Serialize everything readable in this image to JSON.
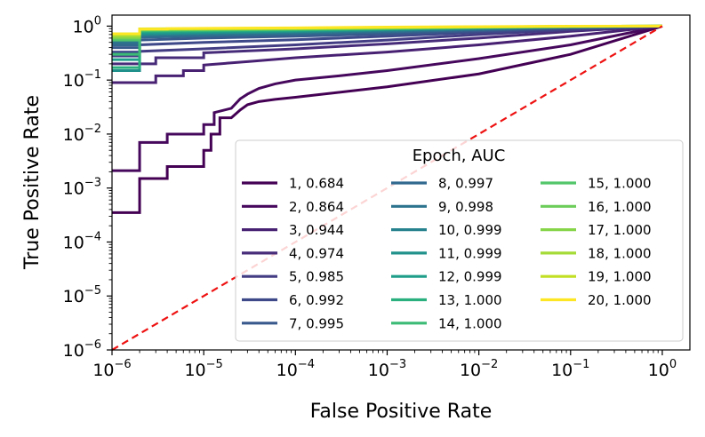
{
  "chart_data": {
    "type": "line",
    "xlabel": "False Positive Rate",
    "ylabel": "True Positive Rate",
    "xscale": "log",
    "yscale": "log",
    "xlim": [
      1e-06,
      2
    ],
    "ylim": [
      1e-06,
      1.6
    ],
    "xticks": [
      {
        "base": "10",
        "exp": "−6"
      },
      {
        "base": "10",
        "exp": "−5"
      },
      {
        "base": "10",
        "exp": "−4"
      },
      {
        "base": "10",
        "exp": "−3"
      },
      {
        "base": "10",
        "exp": "−2"
      },
      {
        "base": "10",
        "exp": "−1"
      },
      {
        "base": "10",
        "exp": "0"
      }
    ],
    "yticks": [
      {
        "base": "10",
        "exp": "−6"
      },
      {
        "base": "10",
        "exp": "−5"
      },
      {
        "base": "10",
        "exp": "−4"
      },
      {
        "base": "10",
        "exp": "−3"
      },
      {
        "base": "10",
        "exp": "−2"
      },
      {
        "base": "10",
        "exp": "−1"
      },
      {
        "base": "10",
        "exp": "0"
      }
    ],
    "legend": {
      "title": "Epoch, AUC",
      "location": "lower right",
      "columns": 3
    },
    "diagonal": {
      "color": "#ee1111",
      "style": "dashed",
      "points": [
        [
          1e-06,
          1e-06
        ],
        [
          1,
          1
        ]
      ]
    },
    "series": [
      {
        "name": "1, 0.684",
        "color": "#440154",
        "points": [
          [
            1e-06,
            0.00035
          ],
          [
            2e-06,
            0.00035
          ],
          [
            2e-06,
            0.0015
          ],
          [
            4e-06,
            0.0015
          ],
          [
            4e-06,
            0.0025
          ],
          [
            1e-05,
            0.0025
          ],
          [
            1e-05,
            0.005
          ],
          [
            1.2e-05,
            0.005
          ],
          [
            1.2e-05,
            0.01
          ],
          [
            1.5e-05,
            0.01
          ],
          [
            1.5e-05,
            0.02
          ],
          [
            2e-05,
            0.02
          ],
          [
            2.5e-05,
            0.028
          ],
          [
            3e-05,
            0.035
          ],
          [
            4e-05,
            0.04
          ],
          [
            6e-05,
            0.044
          ],
          [
            0.0001,
            0.048
          ],
          [
            0.001,
            0.075
          ],
          [
            0.01,
            0.13
          ],
          [
            0.1,
            0.3
          ],
          [
            1,
            1
          ]
        ]
      },
      {
        "name": "2, 0.864",
        "color": "#46085c",
        "points": [
          [
            1e-06,
            0.0021
          ],
          [
            2e-06,
            0.0021
          ],
          [
            2e-06,
            0.007
          ],
          [
            4e-06,
            0.007
          ],
          [
            4e-06,
            0.01
          ],
          [
            1e-05,
            0.01
          ],
          [
            1e-05,
            0.015
          ],
          [
            1.3e-05,
            0.015
          ],
          [
            1.3e-05,
            0.025
          ],
          [
            2e-05,
            0.03
          ],
          [
            2.5e-05,
            0.045
          ],
          [
            3e-05,
            0.055
          ],
          [
            4e-05,
            0.07
          ],
          [
            6e-05,
            0.085
          ],
          [
            0.0001,
            0.1
          ],
          [
            0.0003,
            0.12
          ],
          [
            0.001,
            0.15
          ],
          [
            0.01,
            0.25
          ],
          [
            0.1,
            0.45
          ],
          [
            1,
            1
          ]
        ]
      },
      {
        "name": "3, 0.944",
        "color": "#482173",
        "points": [
          [
            1e-06,
            0.09
          ],
          [
            3e-06,
            0.09
          ],
          [
            3e-06,
            0.12
          ],
          [
            6e-06,
            0.12
          ],
          [
            6e-06,
            0.15
          ],
          [
            1e-05,
            0.15
          ],
          [
            1e-05,
            0.19
          ],
          [
            3e-05,
            0.22
          ],
          [
            0.0001,
            0.26
          ],
          [
            0.001,
            0.33
          ],
          [
            0.01,
            0.45
          ],
          [
            0.1,
            0.65
          ],
          [
            1,
            1
          ]
        ]
      },
      {
        "name": "4, 0.974",
        "color": "#472c7a",
        "points": [
          [
            1e-06,
            0.2
          ],
          [
            3e-06,
            0.2
          ],
          [
            3e-06,
            0.26
          ],
          [
            1e-05,
            0.26
          ],
          [
            1e-05,
            0.32
          ],
          [
            0.0001,
            0.38
          ],
          [
            0.001,
            0.47
          ],
          [
            0.01,
            0.6
          ],
          [
            0.1,
            0.8
          ],
          [
            1,
            1
          ]
        ]
      },
      {
        "name": "5, 0.985",
        "color": "#433d84",
        "points": [
          [
            1e-06,
            0.28
          ],
          [
            2e-06,
            0.28
          ],
          [
            2e-06,
            0.34
          ],
          [
            1e-05,
            0.38
          ],
          [
            0.0001,
            0.45
          ],
          [
            0.001,
            0.55
          ],
          [
            0.01,
            0.7
          ],
          [
            0.1,
            0.86
          ],
          [
            1,
            1
          ]
        ]
      },
      {
        "name": "6, 0.992",
        "color": "#3e4989",
        "points": [
          [
            1e-06,
            0.33
          ],
          [
            2e-06,
            0.33
          ],
          [
            2e-06,
            0.45
          ],
          [
            1e-05,
            0.5
          ],
          [
            0.0001,
            0.56
          ],
          [
            0.001,
            0.65
          ],
          [
            0.01,
            0.77
          ],
          [
            0.1,
            0.9
          ],
          [
            1,
            1
          ]
        ]
      },
      {
        "name": "7, 0.995",
        "color": "#38598c",
        "points": [
          [
            1e-06,
            0.4
          ],
          [
            2e-06,
            0.4
          ],
          [
            2e-06,
            0.55
          ],
          [
            1e-05,
            0.6
          ],
          [
            0.0001,
            0.65
          ],
          [
            0.001,
            0.72
          ],
          [
            0.01,
            0.82
          ],
          [
            0.1,
            0.93
          ],
          [
            1,
            1
          ]
        ]
      },
      {
        "name": "8, 0.997",
        "color": "#31688e",
        "points": [
          [
            1e-06,
            0.45
          ],
          [
            2e-06,
            0.45
          ],
          [
            2e-06,
            0.62
          ],
          [
            1e-05,
            0.66
          ],
          [
            0.0001,
            0.71
          ],
          [
            0.001,
            0.78
          ],
          [
            0.01,
            0.86
          ],
          [
            0.1,
            0.95
          ],
          [
            1,
            1
          ]
        ]
      },
      {
        "name": "9, 0.998",
        "color": "#2c738e",
        "points": [
          [
            1e-06,
            0.5
          ],
          [
            2e-06,
            0.5
          ],
          [
            2e-06,
            0.66
          ],
          [
            1e-05,
            0.7
          ],
          [
            0.0001,
            0.75
          ],
          [
            0.001,
            0.81
          ],
          [
            0.01,
            0.88
          ],
          [
            0.1,
            0.96
          ],
          [
            1,
            1
          ]
        ]
      },
      {
        "name": "10, 0.999",
        "color": "#26828e",
        "points": [
          [
            1e-06,
            0.55
          ],
          [
            2e-06,
            0.55
          ],
          [
            2e-06,
            0.7
          ],
          [
            1e-05,
            0.74
          ],
          [
            0.0001,
            0.78
          ],
          [
            0.001,
            0.84
          ],
          [
            0.01,
            0.9
          ],
          [
            0.1,
            0.97
          ],
          [
            1,
            1
          ]
        ]
      },
      {
        "name": "11, 0.999",
        "color": "#21918c",
        "points": [
          [
            1e-06,
            0.15
          ],
          [
            2e-06,
            0.15
          ],
          [
            2e-06,
            0.72
          ],
          [
            1e-05,
            0.76
          ],
          [
            0.0001,
            0.8
          ],
          [
            0.001,
            0.86
          ],
          [
            0.01,
            0.92
          ],
          [
            0.1,
            0.97
          ],
          [
            1,
            1
          ]
        ]
      },
      {
        "name": "12, 0.999",
        "color": "#1f9e89",
        "points": [
          [
            1e-06,
            0.24
          ],
          [
            2e-06,
            0.24
          ],
          [
            2e-06,
            0.76
          ],
          [
            1e-05,
            0.79
          ],
          [
            0.0001,
            0.83
          ],
          [
            0.001,
            0.88
          ],
          [
            0.01,
            0.93
          ],
          [
            0.1,
            0.98
          ],
          [
            1,
            1
          ]
        ]
      },
      {
        "name": "13, 1.000",
        "color": "#2ab07f",
        "points": [
          [
            1e-06,
            0.17
          ],
          [
            2e-06,
            0.17
          ],
          [
            2e-06,
            0.8
          ],
          [
            1e-05,
            0.82
          ],
          [
            0.0001,
            0.85
          ],
          [
            0.001,
            0.89
          ],
          [
            0.01,
            0.94
          ],
          [
            0.1,
            0.98
          ],
          [
            1,
            1
          ]
        ]
      },
      {
        "name": "14, 1.000",
        "color": "#3bbb75",
        "points": [
          [
            1e-06,
            0.3
          ],
          [
            2e-06,
            0.3
          ],
          [
            2e-06,
            0.82
          ],
          [
            1e-05,
            0.84
          ],
          [
            0.0001,
            0.87
          ],
          [
            0.001,
            0.9
          ],
          [
            0.01,
            0.95
          ],
          [
            0.1,
            0.99
          ],
          [
            1,
            1
          ]
        ]
      },
      {
        "name": "15, 1.000",
        "color": "#52c569",
        "points": [
          [
            1e-06,
            0.55
          ],
          [
            2e-06,
            0.55
          ],
          [
            2e-06,
            0.84
          ],
          [
            1e-05,
            0.86
          ],
          [
            0.0001,
            0.88
          ],
          [
            0.001,
            0.91
          ],
          [
            0.01,
            0.95
          ],
          [
            0.1,
            0.99
          ],
          [
            1,
            1
          ]
        ]
      },
      {
        "name": "16, 1.000",
        "color": "#6ccd5a",
        "points": [
          [
            1e-06,
            0.6
          ],
          [
            2e-06,
            0.6
          ],
          [
            2e-06,
            0.86
          ],
          [
            1e-05,
            0.87
          ],
          [
            0.0001,
            0.89
          ],
          [
            0.001,
            0.92
          ],
          [
            0.01,
            0.96
          ],
          [
            0.1,
            0.99
          ],
          [
            1,
            1
          ]
        ]
      },
      {
        "name": "17, 1.000",
        "color": "#86d549",
        "points": [
          [
            1e-06,
            0.62
          ],
          [
            2e-06,
            0.62
          ],
          [
            2e-06,
            0.87
          ],
          [
            1e-05,
            0.88
          ],
          [
            0.0001,
            0.9
          ],
          [
            0.001,
            0.93
          ],
          [
            0.01,
            0.96
          ],
          [
            0.1,
            0.99
          ],
          [
            1,
            1
          ]
        ]
      },
      {
        "name": "18, 1.000",
        "color": "#a5db36",
        "points": [
          [
            1e-06,
            0.66
          ],
          [
            2e-06,
            0.66
          ],
          [
            2e-06,
            0.88
          ],
          [
            1e-05,
            0.89
          ],
          [
            0.0001,
            0.91
          ],
          [
            0.001,
            0.94
          ],
          [
            0.01,
            0.97
          ],
          [
            0.1,
            0.99
          ],
          [
            1,
            1
          ]
        ]
      },
      {
        "name": "19, 1.000",
        "color": "#c2df23",
        "points": [
          [
            1e-06,
            0.72
          ],
          [
            2e-06,
            0.72
          ],
          [
            2e-06,
            0.89
          ],
          [
            1e-05,
            0.9
          ],
          [
            0.0001,
            0.92
          ],
          [
            0.001,
            0.95
          ],
          [
            0.01,
            0.97
          ],
          [
            0.1,
            0.99
          ],
          [
            1,
            1
          ]
        ]
      },
      {
        "name": "20, 1.000",
        "color": "#fde725",
        "points": [
          [
            1e-06,
            0.72
          ],
          [
            2e-06,
            0.72
          ],
          [
            2e-06,
            0.88
          ],
          [
            4e-06,
            0.88
          ],
          [
            4e-06,
            0.9
          ],
          [
            1e-05,
            0.91
          ],
          [
            0.0001,
            0.93
          ],
          [
            0.001,
            0.96
          ],
          [
            0.01,
            0.98
          ],
          [
            0.1,
            0.995
          ],
          [
            1,
            1
          ]
        ]
      }
    ]
  }
}
